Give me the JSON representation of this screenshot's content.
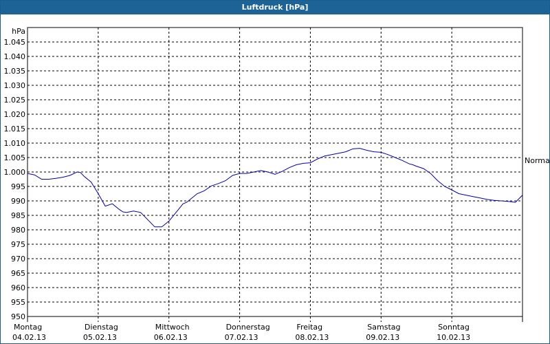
{
  "title": "Luftdruck [hPa]",
  "chart_data": {
    "type": "line",
    "title": "Luftdruck [hPa]",
    "ylabel": "hPa",
    "ylim": [
      950,
      1050
    ],
    "yticks": [
      "950",
      "955",
      "960",
      "965",
      "970",
      "975",
      "980",
      "985",
      "990",
      "995",
      "1.000",
      "1.005",
      "1.010",
      "1.015",
      "1.020",
      "1.025",
      "1.030",
      "1.035",
      "1.040",
      "1.045"
    ],
    "y_tick_values": [
      950,
      955,
      960,
      965,
      970,
      975,
      980,
      985,
      990,
      995,
      1000,
      1005,
      1010,
      1015,
      1020,
      1025,
      1030,
      1035,
      1040,
      1045
    ],
    "x_range": [
      0,
      7
    ],
    "x_unit": "days",
    "x_ticks": [
      {
        "day": "Montag",
        "date": "04.02.13"
      },
      {
        "day": "Dienstag",
        "date": "05.02.13"
      },
      {
        "day": "Mittwoch",
        "date": "06.02.13"
      },
      {
        "day": "Donnerstag",
        "date": "07.02.13"
      },
      {
        "day": "Freitag",
        "date": "08.02.13"
      },
      {
        "day": "Samstag",
        "date": "09.02.13"
      },
      {
        "day": "Sonntag",
        "date": "10.02.13"
      }
    ],
    "reference_line": {
      "label": "Normal",
      "value": 1004
    },
    "grid": true,
    "line_color": "#0000aa",
    "series": [
      {
        "x": [
          0,
          0.1,
          0.2,
          0.3,
          0.4,
          0.5,
          0.6,
          0.7,
          0.75,
          0.8,
          0.9,
          1.0,
          1.1,
          1.2,
          1.3,
          1.35,
          1.4,
          1.5,
          1.6,
          1.7,
          1.8,
          1.9,
          2.0,
          2.1,
          2.2,
          2.25,
          2.3,
          2.4,
          2.5,
          2.6,
          2.7,
          2.8,
          2.9,
          3.0,
          3.1,
          3.2,
          3.3,
          3.4,
          3.5,
          3.6,
          3.7,
          3.8,
          3.9,
          4.0,
          4.1,
          4.2,
          4.3,
          4.4,
          4.5,
          4.6,
          4.7,
          4.8,
          4.9,
          5.0,
          5.1,
          5.2,
          5.3,
          5.4,
          5.45,
          5.5,
          5.6,
          5.7,
          5.8,
          5.9,
          6.0,
          6.1,
          6.2,
          6.3,
          6.4,
          6.5,
          6.6,
          6.7,
          6.8,
          6.9,
          7.0
        ],
        "y": [
          999.5,
          999,
          997.5,
          997.5,
          997.8,
          998.2,
          998.8,
          1000,
          999.8,
          998.5,
          996.5,
          992.5,
          988.2,
          989,
          987,
          986.2,
          986,
          986.5,
          986,
          983.5,
          981,
          981,
          983,
          986,
          989,
          989.5,
          990.5,
          992.5,
          993.5,
          995.2,
          996,
          997,
          998.8,
          999.5,
          999.5,
          1000,
          1000.5,
          1000,
          999.2,
          1000.2,
          1001.5,
          1002.5,
          1003,
          1003.2,
          1004.5,
          1005.5,
          1006,
          1006.5,
          1007,
          1008,
          1008.2,
          1007.5,
          1007,
          1006.8,
          1006,
          1005,
          1004,
          1002.8,
          1002.5,
          1002,
          1001.2,
          999.5,
          997,
          995,
          993.8,
          992.5,
          992,
          991.5,
          991,
          990.5,
          990.2,
          990,
          989.8,
          989.5,
          992
        ]
      }
    ]
  }
}
